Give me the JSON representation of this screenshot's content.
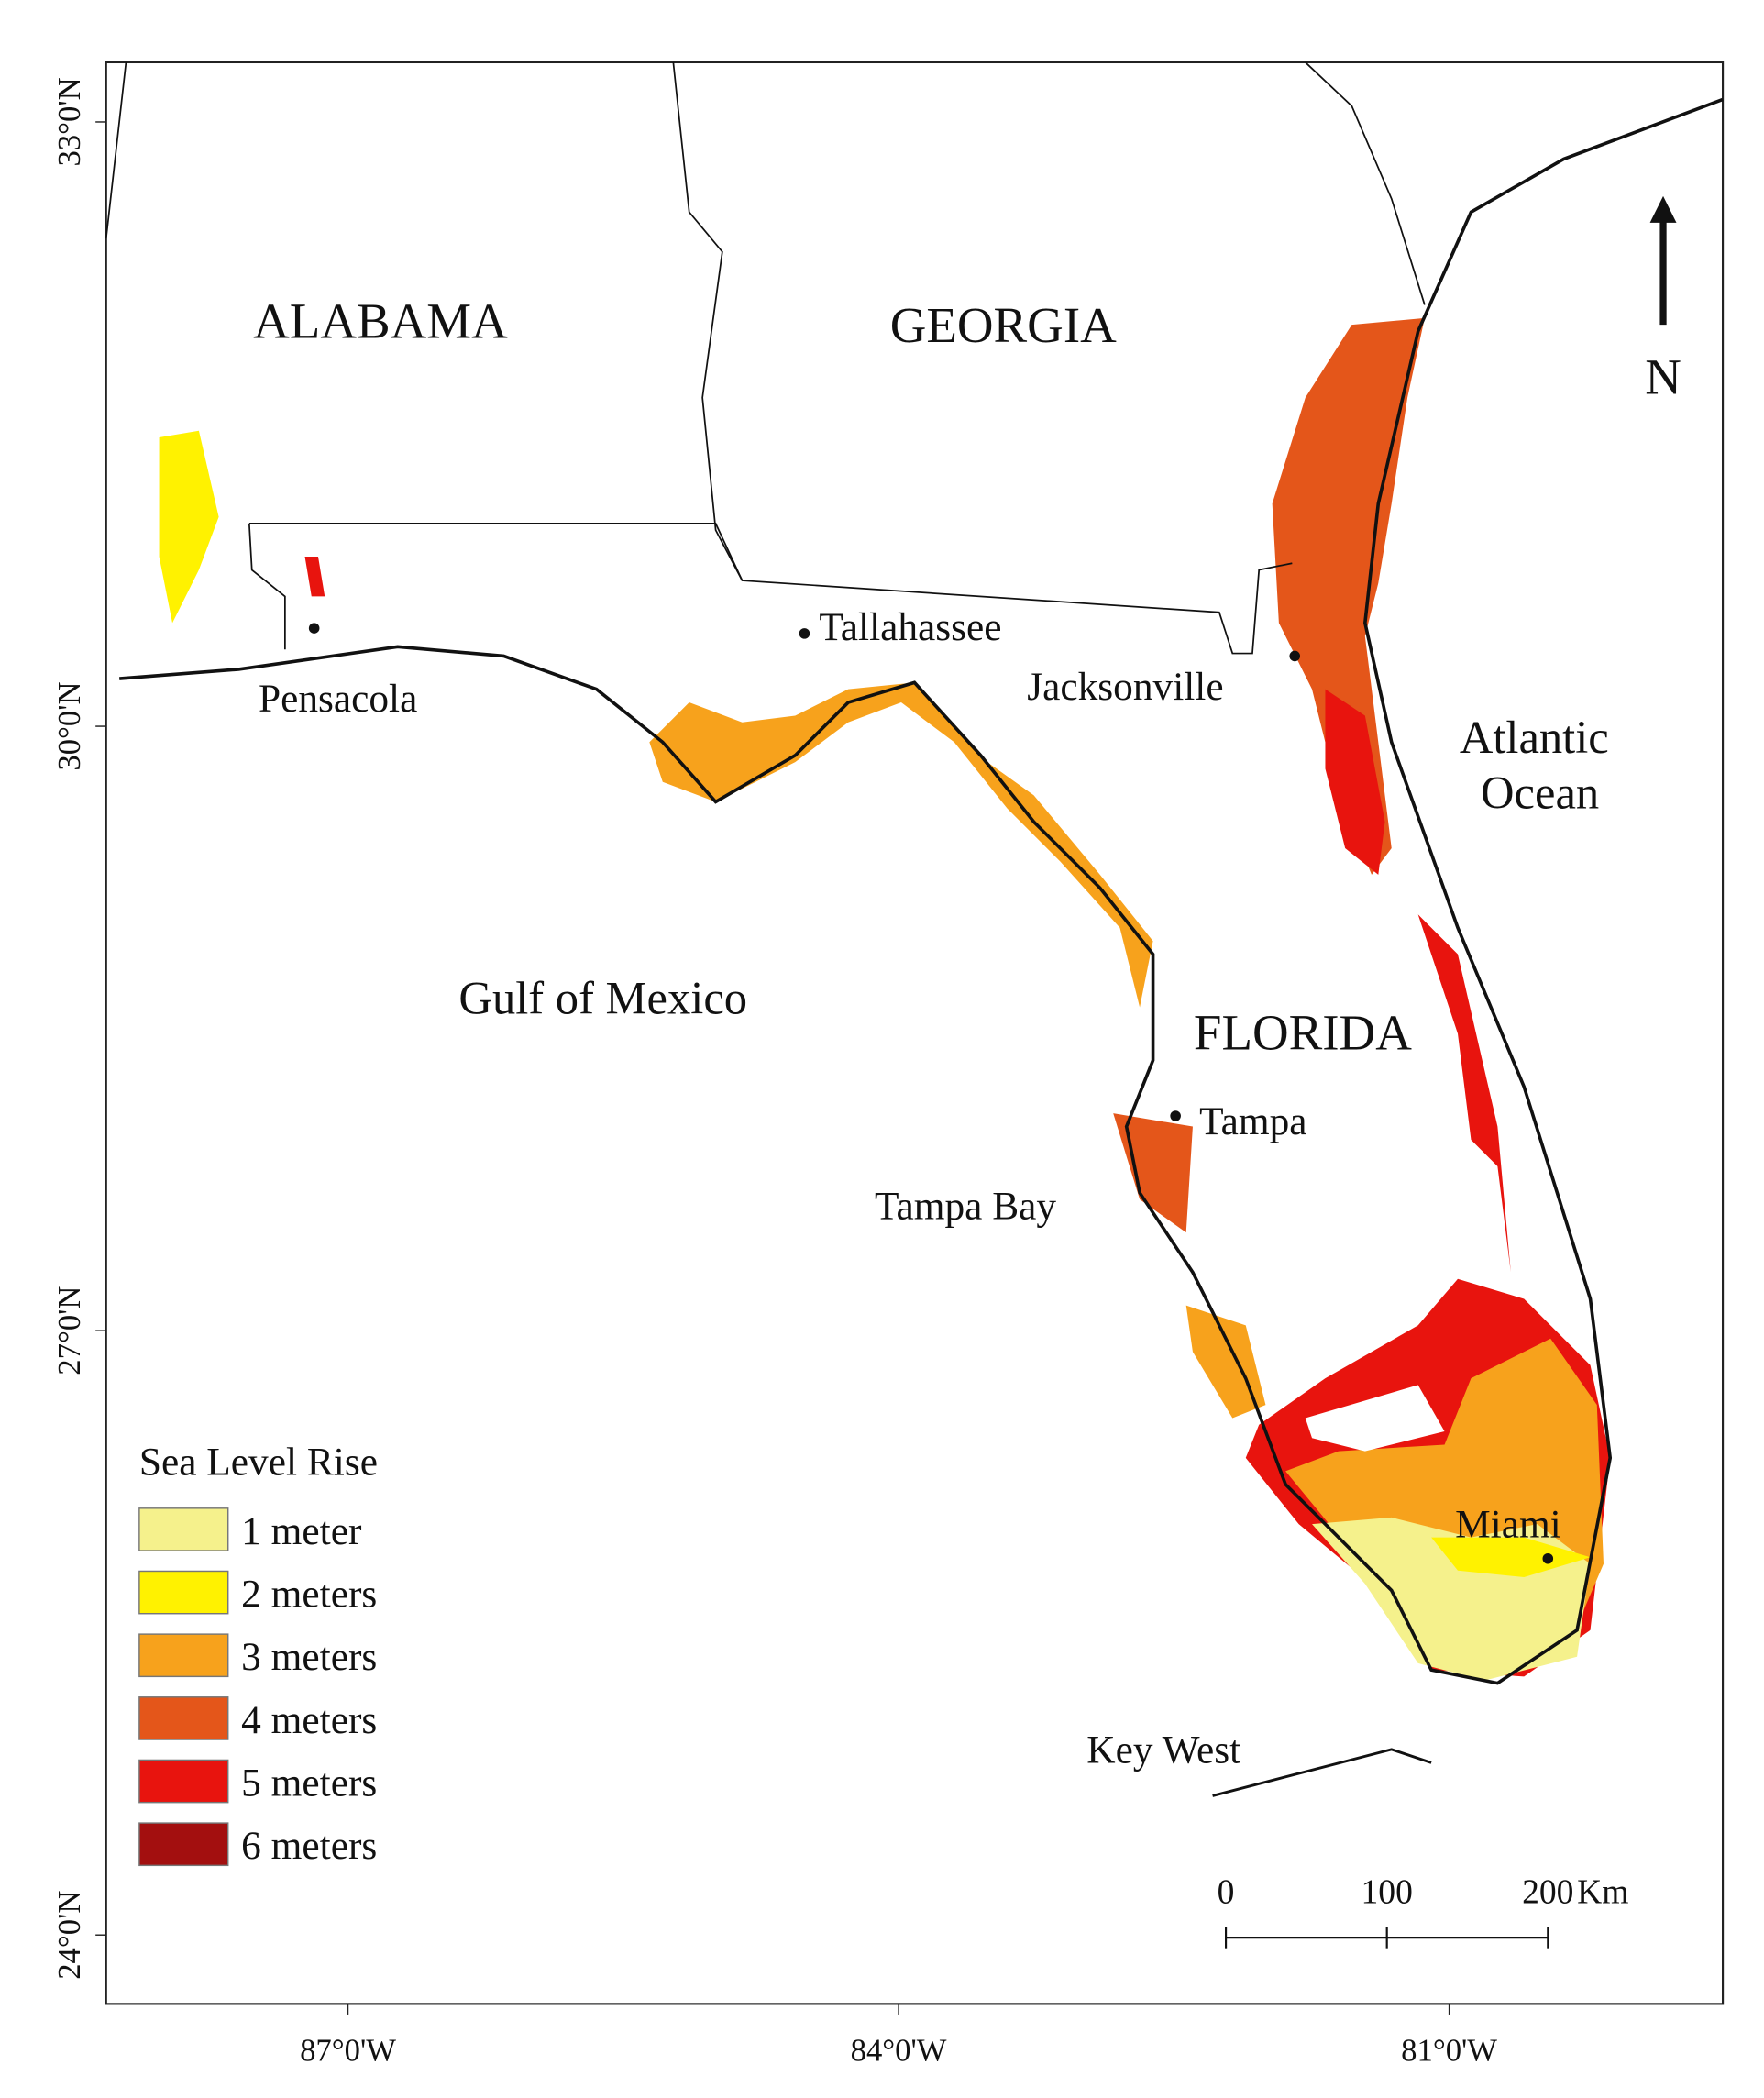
{
  "map": {
    "lat_ticks": [
      {
        "value": 33,
        "label": "33°0'N"
      },
      {
        "value": 30,
        "label": "30°0'N"
      },
      {
        "value": 27,
        "label": "27°0'N"
      },
      {
        "value": 24,
        "label": "24°0'N"
      }
    ],
    "lon_ticks": [
      {
        "value": -87,
        "label": "87°0'W"
      },
      {
        "value": -84,
        "label": "84°0'W"
      },
      {
        "value": -81,
        "label": "81°0'W"
      }
    ],
    "regions": [
      "ALABAMA",
      "GEORGIA",
      "FLORIDA"
    ],
    "water": [
      "Gulf of Mexico",
      "Atlantic Ocean"
    ],
    "cities": [
      "Tallahassee",
      "Pensacola",
      "Jacksonville",
      "Tampa",
      "Tampa Bay",
      "Miami",
      "Key West"
    ],
    "legend": {
      "title": "Sea Level Rise",
      "items": [
        {
          "label": "1 meter",
          "color": "#f5f18c"
        },
        {
          "label": "2 meters",
          "color": "#fff200"
        },
        {
          "label": "3 meters",
          "color": "#f7a21c"
        },
        {
          "label": "4 meters",
          "color": "#e4561a"
        },
        {
          "label": "5 meters",
          "color": "#e8140e"
        },
        {
          "label": "6 meters",
          "color": "#a30f0f"
        }
      ]
    },
    "scale_bar": {
      "ticks": [
        0,
        100,
        200
      ],
      "unit": "Km"
    },
    "north_label": "N"
  }
}
